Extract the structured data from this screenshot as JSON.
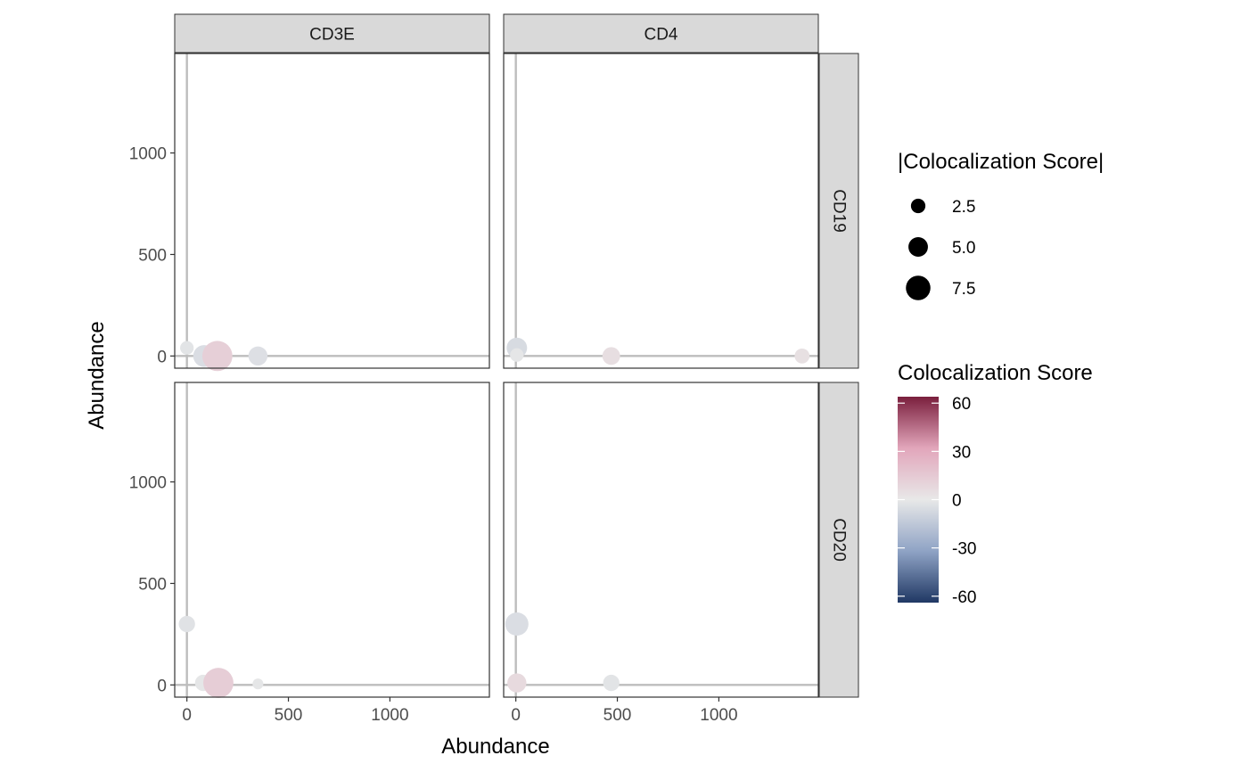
{
  "chart_data": {
    "type": "scatter",
    "xlabel": "Abundance",
    "ylabel": "Abundance",
    "xlim": [
      -60,
      1490
    ],
    "ylim": [
      -60,
      1490
    ],
    "x_ticks": [
      0,
      500,
      1000
    ],
    "y_ticks": [
      0,
      500,
      1000
    ],
    "col_facets": [
      "CD3E",
      "CD4"
    ],
    "row_facets": [
      "CD19",
      "CD20"
    ],
    "panels": [
      {
        "col": "CD3E",
        "row": "CD19",
        "points": [
          {
            "x": 0,
            "y": 40,
            "size": 2.0,
            "score": -2
          },
          {
            "x": 85,
            "y": 0,
            "size": 5.0,
            "score": -5
          },
          {
            "x": 150,
            "y": 0,
            "size": 8.0,
            "score": 12
          },
          {
            "x": 350,
            "y": 0,
            "size": 4.0,
            "score": -4
          }
        ]
      },
      {
        "col": "CD4",
        "row": "CD19",
        "points": [
          {
            "x": 5,
            "y": 40,
            "size": 4.5,
            "score": -6
          },
          {
            "x": 5,
            "y": 5,
            "size": 2.0,
            "score": -1
          },
          {
            "x": 470,
            "y": 0,
            "size": 3.5,
            "score": 5
          },
          {
            "x": 1410,
            "y": 0,
            "size": 2.5,
            "score": 4
          }
        ]
      },
      {
        "col": "CD3E",
        "row": "CD20",
        "points": [
          {
            "x": 0,
            "y": 300,
            "size": 3.0,
            "score": -3
          },
          {
            "x": 80,
            "y": 10,
            "size": 3.0,
            "score": -1
          },
          {
            "x": 155,
            "y": 10,
            "size": 8.0,
            "score": 13
          },
          {
            "x": 350,
            "y": 5,
            "size": 1.0,
            "score": -1
          }
        ]
      },
      {
        "col": "CD4",
        "row": "CD20",
        "points": [
          {
            "x": 5,
            "y": 300,
            "size": 5.5,
            "score": -5
          },
          {
            "x": 5,
            "y": 10,
            "size": 4.0,
            "score": 7
          },
          {
            "x": 470,
            "y": 10,
            "size": 3.0,
            "score": -2
          }
        ]
      }
    ],
    "legend_size": {
      "title": "|Colocalization Score|",
      "entries": [
        {
          "label": "2.5",
          "value": 2.5
        },
        {
          "label": "5.0",
          "value": 5.0
        },
        {
          "label": "7.5",
          "value": 7.5
        }
      ]
    },
    "legend_color": {
      "title": "Colocalization Score",
      "ticks": [
        {
          "label": "60",
          "value": 60
        },
        {
          "label": "30",
          "value": 30
        },
        {
          "label": "0",
          "value": 0
        },
        {
          "label": "-30",
          "value": -30
        },
        {
          "label": "-60",
          "value": -60
        }
      ],
      "range": [
        -64,
        64
      ],
      "colors": {
        "low": "#203864",
        "mid": "#e8e8e8",
        "high": "#7a1f3d",
        "mid_high": "#e2a6bb",
        "mid_low": "#8fa3c5"
      }
    },
    "legend_position": "right",
    "grid": false,
    "reference_lines": {
      "x": 0,
      "y": 0,
      "color": "#bdbdbd"
    }
  }
}
